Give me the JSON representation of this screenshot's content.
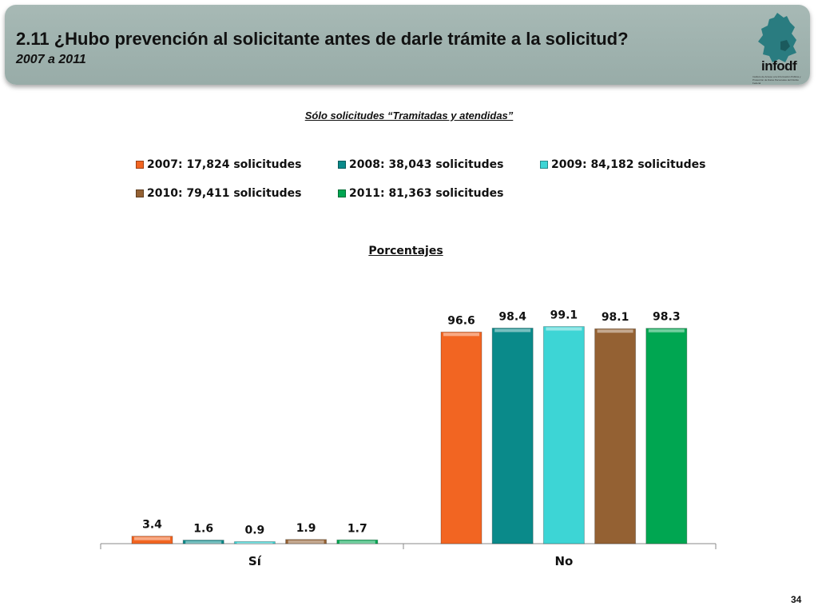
{
  "header": {
    "title": "2.11 ¿Hubo prevención al solicitante antes de darle trámite a la solicitud?",
    "subtitle": "2007 a 2011",
    "logo_text": "infodf",
    "logo_subtext": "Instituto de Acceso a la Información Pública y Protección de Datos Personales del Distrito Federal"
  },
  "note": "Sólo solicitudes “Tramitadas y atendidas”",
  "page_number": "34",
  "chart_data": {
    "type": "bar",
    "title": "Porcentajes",
    "categories": [
      "Sí",
      "No"
    ],
    "series": [
      {
        "name": "2007: 17,824 solicitudes",
        "color": "#f26522",
        "values": [
          3.4,
          96.6
        ]
      },
      {
        "name": "2008: 38,043 solicitudes",
        "color": "#0a8a8a",
        "values": [
          1.6,
          98.4
        ]
      },
      {
        "name": "2009: 84,182 solicitudes",
        "color": "#3dd5d5",
        "values": [
          0.9,
          99.1
        ]
      },
      {
        "name": "2010: 79,411 solicitudes",
        "color": "#946133",
        "values": [
          1.9,
          98.1
        ]
      },
      {
        "name": "2011: 81,363 solicitudes",
        "color": "#00a651",
        "values": [
          1.7,
          98.3
        ]
      }
    ],
    "ylim": [
      0,
      100
    ],
    "grid": false,
    "legend_position": "top"
  }
}
